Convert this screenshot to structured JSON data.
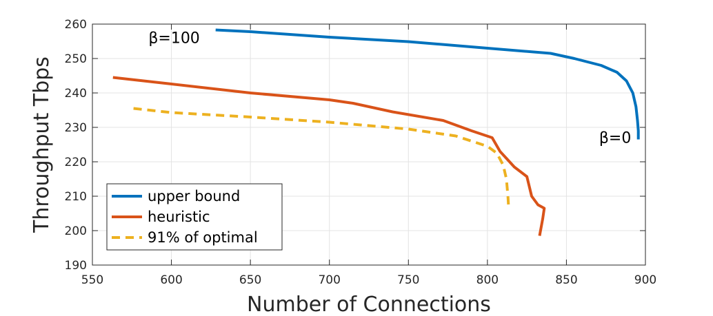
{
  "chart_data": {
    "type": "line",
    "xlabel": "Number of Connections",
    "ylabel": "Throughput Tbps",
    "xlim": [
      550,
      900
    ],
    "ylim": [
      190,
      260
    ],
    "xticks": [
      550,
      600,
      650,
      700,
      750,
      800,
      850,
      900
    ],
    "yticks": [
      190,
      200,
      210,
      220,
      230,
      240,
      250,
      260
    ],
    "grid": true,
    "legend_position": "bottom-left",
    "series": [
      {
        "name": "upper bound",
        "color": "#0072BD",
        "style": "solid",
        "points": [
          [
            628,
            258.3
          ],
          [
            650,
            257.8
          ],
          [
            700,
            256.2
          ],
          [
            750,
            254.9
          ],
          [
            800,
            253.0
          ],
          [
            840,
            251.5
          ],
          [
            855,
            250.0
          ],
          [
            872,
            248.0
          ],
          [
            882,
            246.0
          ],
          [
            888,
            243.5
          ],
          [
            892,
            240.0
          ],
          [
            894,
            236.0
          ],
          [
            895,
            232.0
          ],
          [
            895.5,
            229.0
          ],
          [
            895.5,
            226.5
          ]
        ]
      },
      {
        "name": "heuristic",
        "color": "#D95319",
        "style": "solid",
        "points": [
          [
            563,
            244.5
          ],
          [
            600,
            242.6
          ],
          [
            650,
            240.0
          ],
          [
            700,
            238.0
          ],
          [
            715,
            237.0
          ],
          [
            740,
            234.5
          ],
          [
            772,
            232.0
          ],
          [
            790,
            229.0
          ],
          [
            803,
            227.0
          ],
          [
            808,
            223.0
          ],
          [
            812,
            221.0
          ],
          [
            817,
            218.5
          ],
          [
            825,
            215.7
          ],
          [
            828,
            210.0
          ],
          [
            832,
            207.5
          ],
          [
            836,
            206.5
          ],
          [
            835,
            203.5
          ],
          [
            833,
            198.5
          ]
        ]
      },
      {
        "name": "91% of optimal",
        "color": "#EDB120",
        "style": "dashed",
        "points": [
          [
            576,
            235.5
          ],
          [
            600,
            234.3
          ],
          [
            650,
            233.0
          ],
          [
            700,
            231.5
          ],
          [
            750,
            229.5
          ],
          [
            780,
            227.5
          ],
          [
            800,
            224.5
          ],
          [
            806,
            222.5
          ],
          [
            810,
            219.0
          ],
          [
            812,
            215.0
          ],
          [
            813,
            210.0
          ],
          [
            813.5,
            206.0
          ]
        ]
      }
    ],
    "annotations": [
      {
        "text": "β=100",
        "x": 618,
        "y": 254.5
      },
      {
        "text": "β=0",
        "x": 891,
        "y": 225.5
      }
    ]
  }
}
